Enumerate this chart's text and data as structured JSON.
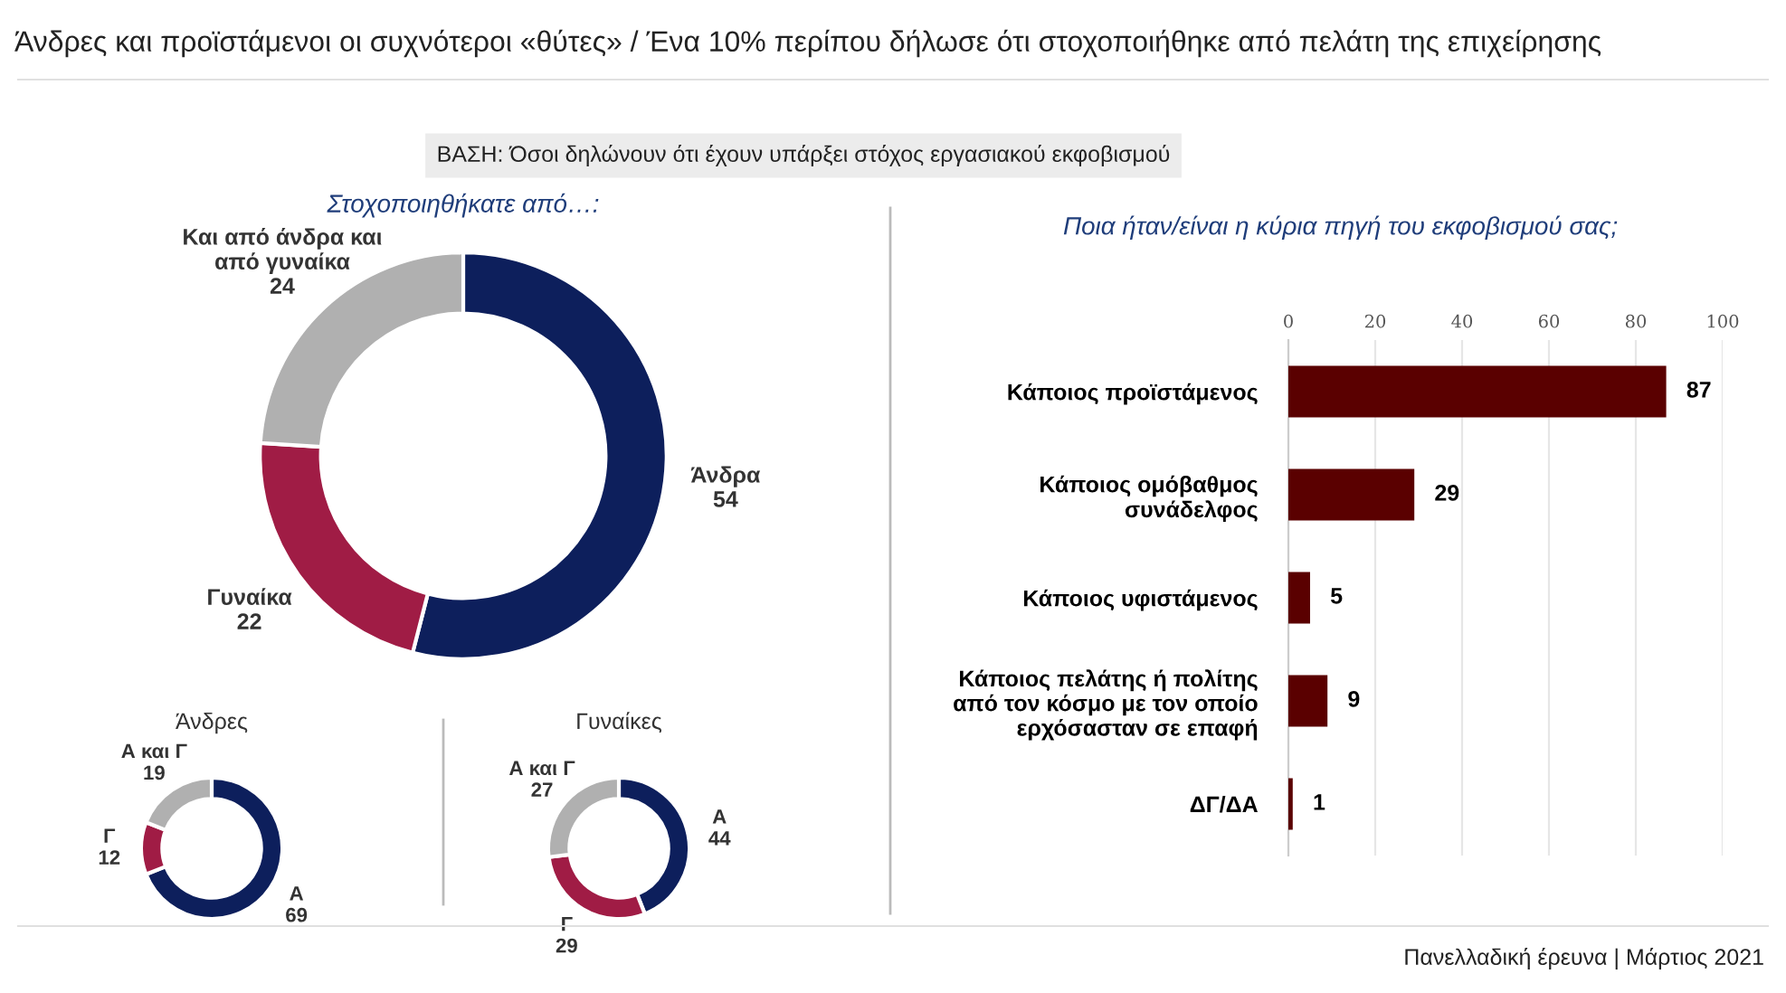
{
  "chart_data": [
    {
      "type": "donut",
      "title": "Στοχοποιηθήκατε από…:",
      "categories": [
        "Άνδρα",
        "Γυναίκα",
        "Και από άνδρα και\nαπό γυναίκα"
      ],
      "values": [
        54,
        22,
        24
      ],
      "colors": [
        "#0d1f5c",
        "#a01c45",
        "#b0b0b0"
      ],
      "data_labels": true,
      "annotations": [
        "Άνδρες και προϊστάμενοι οι συχνότεροι «θύτες» / Ένα 10% περίπου δήλωσε ότι στοχοποιήθηκε από πελάτη της επιχείρησης",
        "ΒΑΣΗ: Όσοι δηλώνουν ότι έχουν υπάρξει στόχος εργασιακού εκφοβισμού",
        "Πανελλαδική έρευνα | Μάρτιος 2021"
      ]
    },
    {
      "type": "donut",
      "title": "Άνδρες",
      "categories": [
        "Α",
        "Γ",
        "Α και Γ"
      ],
      "values": [
        69,
        12,
        19
      ],
      "colors": [
        "#0d1f5c",
        "#a01c45",
        "#b0b0b0"
      ],
      "data_labels": true
    },
    {
      "type": "donut",
      "title": "Γυναίκες",
      "categories": [
        "Α",
        "Γ",
        "Α και Γ"
      ],
      "values": [
        44,
        29,
        27
      ],
      "colors": [
        "#0d1f5c",
        "#a01c45",
        "#b0b0b0"
      ],
      "data_labels": true
    },
    {
      "type": "bar",
      "orientation": "horizontal",
      "title": "Ποια ήταν/είναι η κύρια πηγή του εκφοβισμού σας;",
      "categories": [
        "Κάποιος προϊστάμενος",
        "Κάποιος ομόβαθμος\nσυνάδελφος",
        "Κάποιος υφιστάμενος",
        "Κάποιος πελάτης ή πολίτης\nαπό τον κόσμο με τον οποίο\nερχόσασταν σε επαφή",
        "ΔΓ/ΔΑ"
      ],
      "values": [
        87,
        29,
        5,
        9,
        1
      ],
      "color": "#5a0000",
      "xlim": [
        0,
        100
      ],
      "xticks": [
        0,
        20,
        40,
        60,
        80,
        100
      ],
      "grid": "x",
      "data_labels": true
    }
  ]
}
